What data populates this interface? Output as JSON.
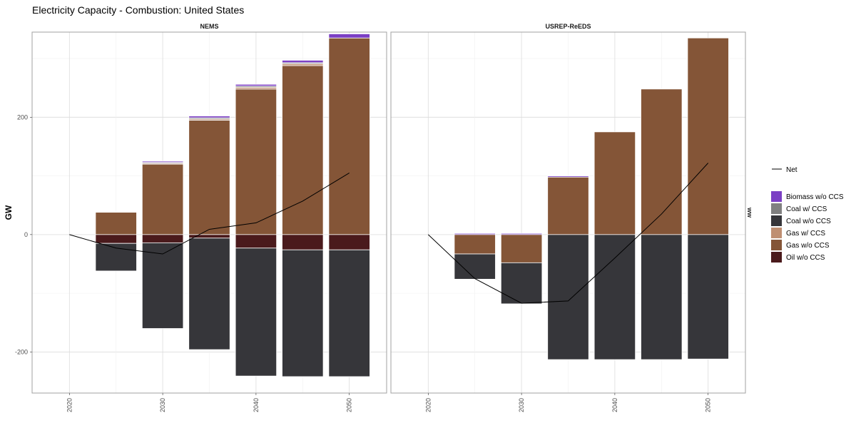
{
  "title": "Electricity Capacity - Combustion: United States",
  "chart_data": {
    "type": "bar",
    "title": "Electricity Capacity - Combustion: United States",
    "ylabel": "GW",
    "right_strip_label": "ww",
    "ylim": [
      -270,
      345
    ],
    "yticks": [
      -200,
      0,
      200
    ],
    "xlim": [
      2016,
      2054
    ],
    "xticks": [
      2020,
      2030,
      2040,
      2050
    ],
    "grid": true,
    "legend_position": "right",
    "series_colors": {
      "Biomass w/o CCS": "#7b3fc4",
      "Coal w/ CCS": "#808080",
      "Coal w/o CCS": "#36363a",
      "Gas w/ CCS": "#bf8f72",
      "Gas w/o CCS": "#845537",
      "Oil w/o CCS": "#4a1a1c"
    },
    "net_color": "#000000",
    "legend": {
      "net_label": "Net",
      "items": [
        "Biomass w/o CCS",
        "Coal w/ CCS",
        "Coal w/o CCS",
        "Gas w/ CCS",
        "Gas w/o CCS",
        "Oil w/o CCS"
      ]
    },
    "panels": [
      {
        "name": "NEMS",
        "categories": [
          2025,
          2030,
          2035,
          2040,
          2045,
          2050
        ],
        "positive_series": [
          {
            "name": "Gas w/o CCS",
            "values": [
              38,
              120,
              195,
              248,
              288,
              335
            ]
          },
          {
            "name": "Gas w/ CCS",
            "values": [
              0,
              1.5,
              2,
              3,
              3,
              0
            ]
          },
          {
            "name": "Coal w/ CCS",
            "values": [
              0,
              1.5,
              2,
              2,
              2,
              0
            ]
          },
          {
            "name": "Biomass w/o CCS",
            "values": [
              0,
              2,
              3,
              3,
              4,
              7
            ]
          }
        ],
        "negative_series": [
          {
            "name": "Oil w/o CCS",
            "values": [
              -15,
              -14,
              -6,
              -23,
              -26,
              -26
            ]
          },
          {
            "name": "Coal w/o CCS",
            "values": [
              -47,
              -146,
              -190,
              -218,
              -216,
              -216
            ]
          }
        ],
        "net": {
          "x": [
            2020,
            2025,
            2030,
            2035,
            2040,
            2045,
            2050
          ],
          "y": [
            0,
            -23,
            -33,
            9,
            20,
            57,
            105
          ]
        }
      },
      {
        "name": "USREP-ReEDS",
        "categories": [
          2025,
          2030,
          2035,
          2040,
          2045,
          2050
        ],
        "positive_series": [
          {
            "name": "Gas w/o CCS",
            "values": [
              0,
              0,
              98,
              175,
              248,
              335
            ]
          },
          {
            "name": "Biomass w/o CCS",
            "values": [
              2,
              2,
              2,
              0,
              0,
              0
            ]
          }
        ],
        "negative_series": [
          {
            "name": "Gas w/o CCS",
            "values": [
              -33,
              -48,
              0,
              0,
              0,
              0
            ]
          },
          {
            "name": "Coal w/o CCS",
            "values": [
              -43,
              -70,
              -213,
              -213,
              -213,
              -212
            ]
          }
        ],
        "net": {
          "x": [
            2020,
            2025,
            2030,
            2035,
            2040,
            2045,
            2050
          ],
          "y": [
            0,
            -75,
            -117,
            -113,
            -40,
            35,
            122
          ]
        }
      }
    ]
  }
}
